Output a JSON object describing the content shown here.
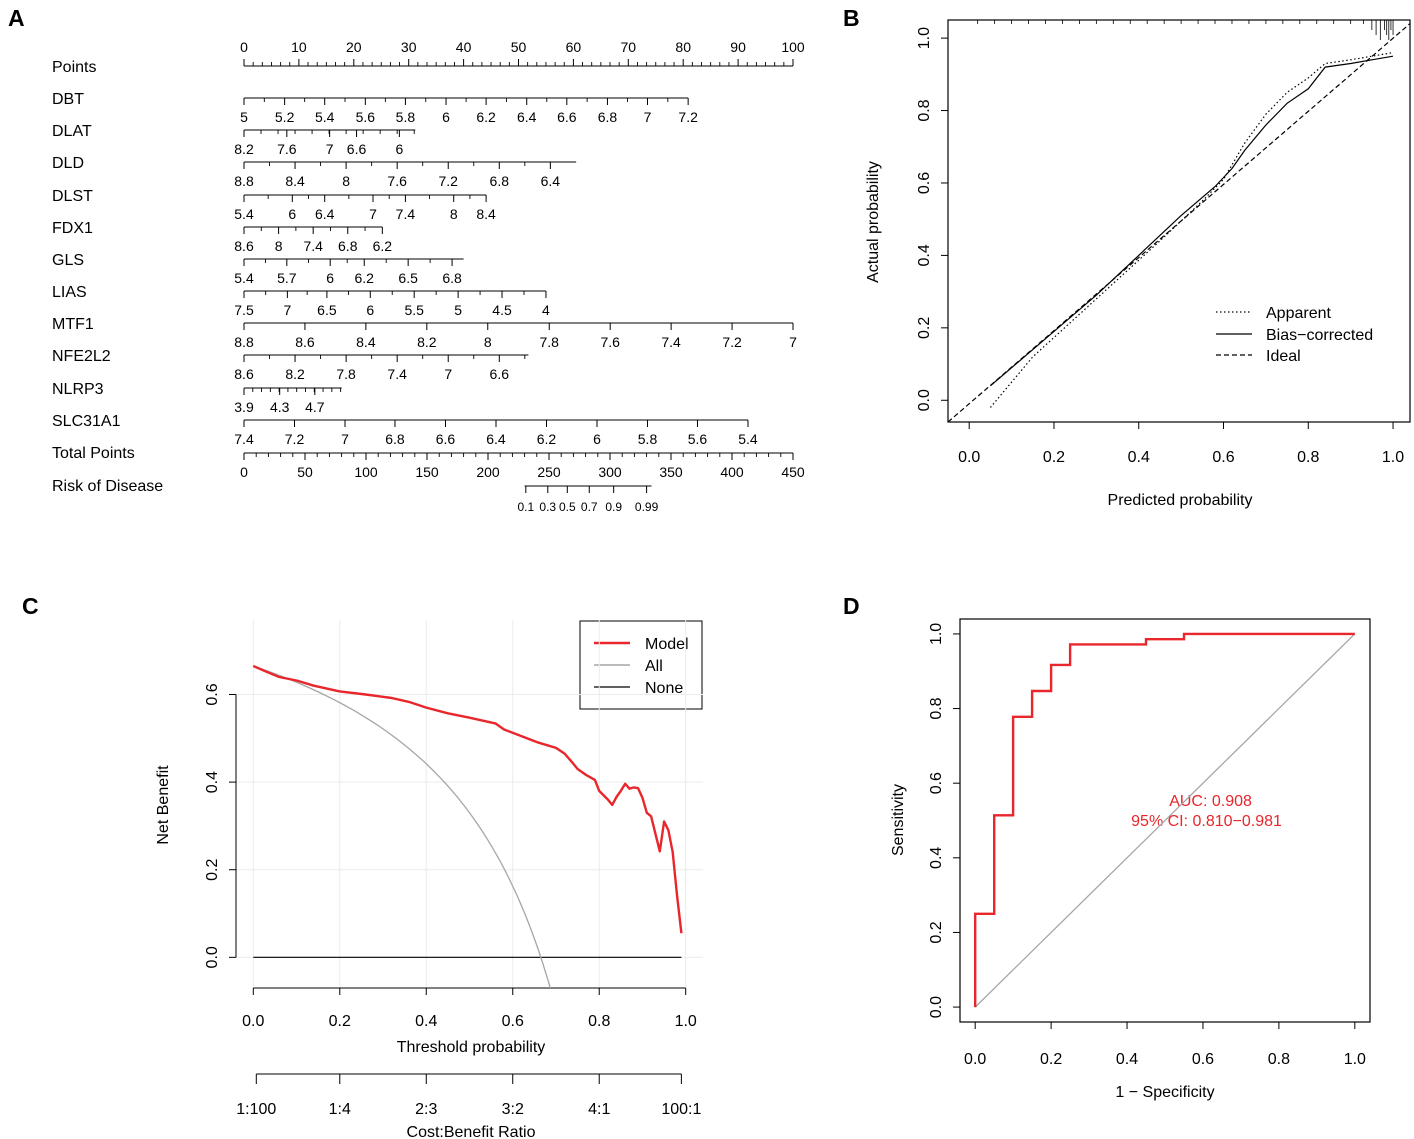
{
  "panels": {
    "A": "A",
    "B": "B",
    "C": "C",
    "D": "D"
  },
  "colors": {
    "ink": "#000000",
    "model": "#e8262b",
    "all": "#a6a6a6",
    "grid": "#ebebeb"
  },
  "chart_data": [
    {
      "type": "nomogram",
      "panel": "A",
      "rows": [
        {
          "label": "Points",
          "ticks": [
            0,
            10,
            20,
            30,
            40,
            50,
            60,
            70,
            80,
            90,
            100
          ],
          "tick_labels": [
            "0",
            "10",
            "20",
            "30",
            "40",
            "50",
            "60",
            "70",
            "80",
            "90",
            "100"
          ],
          "points": [
            0,
            10,
            20,
            30,
            40,
            50,
            60,
            70,
            80,
            90,
            100
          ],
          "minor": 5
        },
        {
          "label": "DBT",
          "tick_labels": [
            "5",
            "5.2",
            "5.4",
            "5.6",
            "5.8",
            "6",
            "6.2",
            "6.4",
            "6.6",
            "6.8",
            "7",
            "7.2"
          ],
          "points": [
            0,
            7.4,
            14.7,
            22.1,
            29.4,
            36.8,
            44.1,
            51.5,
            58.8,
            66.2,
            73.5,
            80.9
          ],
          "minor": 1
        },
        {
          "label": "DLAT",
          "tick_labels": [
            "8.2",
            "7.6",
            "7",
            "6.6",
            "6"
          ],
          "points": [
            0,
            7.8,
            15.6,
            20.5,
            28.3
          ],
          "axis_end": 31.2,
          "minor_step": 3.1
        },
        {
          "label": "DLD",
          "tick_labels": [
            "8.8",
            "8.4",
            "8",
            "7.6",
            "7.2",
            "6.8",
            "6.4"
          ],
          "points": [
            0,
            9.3,
            18.6,
            27.9,
            37.2,
            46.5,
            55.8
          ],
          "axis_end": 60.5,
          "minor": 1
        },
        {
          "label": "DLST",
          "tick_labels": [
            "5.4",
            "6",
            "6.4",
            "7",
            "7.4",
            "8",
            "8.4"
          ],
          "points": [
            0,
            8.8,
            14.7,
            23.5,
            29.4,
            38.2,
            44.1
          ],
          "axis_end": 44.1,
          "minor": 1
        },
        {
          "label": "FDX1",
          "tick_labels": [
            "8.6",
            "8",
            "7.4",
            "6.8",
            "6.2"
          ],
          "points": [
            0,
            6.3,
            12.6,
            18.9,
            25.2
          ],
          "axis_end": 25.2,
          "minor": 1
        },
        {
          "label": "GLS",
          "tick_labels": [
            "5.4",
            "5.7",
            "6",
            "6.2",
            "6.5",
            "6.8"
          ],
          "points": [
            0,
            7.8,
            15.7,
            21.9,
            29.9,
            37.9
          ],
          "axis_end": 40,
          "minor": 1
        },
        {
          "label": "LIAS",
          "tick_labels": [
            "7.5",
            "7",
            "6.5",
            "6",
            "5.5",
            "5",
            "4.5",
            "4"
          ],
          "points": [
            0,
            7.9,
            15.1,
            23,
            31,
            39,
            47,
            55
          ],
          "axis_end": 55,
          "minor": 1
        },
        {
          "label": "MTF1",
          "tick_labels": [
            "8.8",
            "8.6",
            "8.4",
            "8.2",
            "8",
            "7.8",
            "7.6",
            "7.4",
            "7.2",
            "7"
          ],
          "points": [
            0,
            11.1,
            22.2,
            33.3,
            44.4,
            55.6,
            66.7,
            77.8,
            88.9,
            100
          ],
          "minor": 0
        },
        {
          "label": "NFE2L2",
          "tick_labels": [
            "8.6",
            "8.2",
            "7.8",
            "7.4",
            "7",
            "6.6"
          ],
          "points": [
            0,
            9.3,
            18.6,
            27.9,
            37.2,
            46.5
          ],
          "axis_end": 51.8,
          "minor": 1
        },
        {
          "label": "NLRP3",
          "tick_labels": [
            "3.9",
            "4.3",
            "4.7"
          ],
          "points": [
            0,
            6.5,
            12.9
          ],
          "axis_end": 17.8,
          "minor_step": 1.6
        },
        {
          "label": "SLC31A1",
          "tick_labels": [
            "7.4",
            "7.2",
            "7",
            "6.8",
            "6.6",
            "6.4",
            "6.2",
            "6",
            "5.8",
            "5.6",
            "5.4"
          ],
          "points": [
            0,
            9.2,
            18.4,
            27.5,
            36.7,
            45.9,
            55.1,
            64.3,
            73.5,
            82.6,
            91.8
          ],
          "minor": 0
        },
        {
          "label": "Total Points",
          "tick_labels": [
            "0",
            "50",
            "100",
            "150",
            "200",
            "250",
            "300",
            "350",
            "400",
            "450"
          ],
          "total": [
            0,
            50,
            100,
            150,
            200,
            250,
            300,
            350,
            400,
            450
          ],
          "minor": 4
        },
        {
          "label": "Risk of Disease",
          "tick_labels": [
            "0.1",
            "0.3",
            "0.5",
            "0.7",
            "0.9",
            "0.99"
          ],
          "total_at": [
            231,
            249,
            265,
            283,
            303,
            330
          ],
          "axis_range": [
            230,
            334
          ]
        }
      ],
      "total_points_range": [
        0,
        450
      ]
    },
    {
      "type": "line",
      "panel": "B",
      "xlabel": "Predicted probability",
      "ylabel": "Actual probability",
      "xlim": [
        -0.05,
        1.04
      ],
      "ylim": [
        -0.06,
        1.05
      ],
      "xticks": [
        "0.0",
        "0.2",
        "0.4",
        "0.6",
        "0.8",
        "1.0"
      ],
      "yticks": [
        "0.0",
        "0.2",
        "0.4",
        "0.6",
        "0.8",
        "1.0"
      ],
      "legend": {
        "position": "bottom-right",
        "entries": [
          "Apparent",
          "Bias−corrected",
          "Ideal"
        ]
      },
      "series": [
        {
          "name": "Apparent",
          "style": "dotted",
          "points": [
            [
              0.05,
              -0.02
            ],
            [
              0.15,
              0.12
            ],
            [
              0.3,
              0.28
            ],
            [
              0.45,
              0.44
            ],
            [
              0.55,
              0.55
            ],
            [
              0.6,
              0.61
            ],
            [
              0.65,
              0.71
            ],
            [
              0.7,
              0.79
            ],
            [
              0.75,
              0.85
            ],
            [
              0.8,
              0.89
            ],
            [
              0.84,
              0.93
            ],
            [
              0.9,
              0.94
            ],
            [
              0.95,
              0.95
            ],
            [
              1.0,
              0.96
            ]
          ]
        },
        {
          "name": "Bias−corrected",
          "style": "solid",
          "points": [
            [
              0.05,
              0.04
            ],
            [
              0.15,
              0.14
            ],
            [
              0.3,
              0.29
            ],
            [
              0.4,
              0.4
            ],
            [
              0.5,
              0.51
            ],
            [
              0.58,
              0.59
            ],
            [
              0.62,
              0.64
            ],
            [
              0.65,
              0.69
            ],
            [
              0.7,
              0.76
            ],
            [
              0.75,
              0.82
            ],
            [
              0.8,
              0.86
            ],
            [
              0.84,
              0.92
            ],
            [
              0.9,
              0.93
            ],
            [
              0.95,
              0.94
            ],
            [
              1.0,
              0.95
            ]
          ]
        },
        {
          "name": "Ideal",
          "style": "dashed",
          "points": [
            [
              -0.05,
              -0.06
            ],
            [
              1.04,
              1.04
            ]
          ]
        }
      ],
      "rug": [
        0.02,
        0.06,
        0.1,
        0.14,
        0.18,
        0.22,
        0.26,
        0.3,
        0.34,
        0.38,
        0.42,
        0.46,
        0.5,
        0.54,
        0.58,
        0.62,
        0.66,
        0.7,
        0.74,
        0.78,
        0.82,
        0.86,
        0.9,
        0.93,
        0.95,
        0.96,
        0.97,
        0.98,
        0.985,
        0.99,
        0.995,
        1.0
      ]
    },
    {
      "type": "line",
      "panel": "C",
      "xlabel": "Threshold probability",
      "ylabel": "Net Benefit",
      "xlim": [
        -0.04,
        1.04
      ],
      "ylim": [
        -0.07,
        0.77
      ],
      "xticks": [
        "0.0",
        "0.2",
        "0.4",
        "0.6",
        "0.8",
        "1.0"
      ],
      "yticks": [
        "0.0",
        "0.2",
        "0.4",
        "0.6"
      ],
      "x2label": "Cost:Benefit Ratio",
      "x2ticks": [
        "1:100",
        "1:4",
        "2:3",
        "3:2",
        "4:1",
        "100:1"
      ],
      "legend": {
        "position": "top-right",
        "entries": [
          "Model",
          "All",
          "None"
        ]
      },
      "series": [
        {
          "name": "Model",
          "points": [
            [
              0,
              0.665
            ],
            [
              0.03,
              0.652
            ],
            [
              0.06,
              0.64
            ],
            [
              0.1,
              0.632
            ],
            [
              0.14,
              0.62
            ],
            [
              0.2,
              0.607
            ],
            [
              0.26,
              0.6
            ],
            [
              0.32,
              0.592
            ],
            [
              0.36,
              0.583
            ],
            [
              0.4,
              0.57
            ],
            [
              0.45,
              0.557
            ],
            [
              0.5,
              0.547
            ],
            [
              0.56,
              0.534
            ],
            [
              0.58,
              0.52
            ],
            [
              0.62,
              0.505
            ],
            [
              0.66,
              0.49
            ],
            [
              0.7,
              0.478
            ],
            [
              0.72,
              0.465
            ],
            [
              0.74,
              0.442
            ],
            [
              0.75,
              0.43
            ],
            [
              0.77,
              0.416
            ],
            [
              0.79,
              0.405
            ],
            [
              0.8,
              0.38
            ],
            [
              0.82,
              0.36
            ],
            [
              0.83,
              0.348
            ],
            [
              0.84,
              0.366
            ],
            [
              0.85,
              0.38
            ],
            [
              0.86,
              0.396
            ],
            [
              0.87,
              0.385
            ],
            [
              0.88,
              0.388
            ],
            [
              0.89,
              0.386
            ],
            [
              0.9,
              0.364
            ],
            [
              0.91,
              0.33
            ],
            [
              0.92,
              0.322
            ],
            [
              0.94,
              0.242
            ],
            [
              0.95,
              0.31
            ],
            [
              0.96,
              0.29
            ],
            [
              0.97,
              0.24
            ],
            [
              0.98,
              0.14
            ],
            [
              0.99,
              0.055
            ]
          ]
        },
        {
          "name": "All",
          "prevalence": 0.665,
          "x_end": 0.69
        },
        {
          "name": "None",
          "points": [
            [
              0,
              0
            ],
            [
              0.99,
              0
            ]
          ]
        }
      ]
    },
    {
      "type": "line",
      "panel": "D",
      "xlabel": "1 − Specificity",
      "ylabel": "Sensitivity",
      "xlim": [
        -0.04,
        1.04
      ],
      "ylim": [
        -0.04,
        1.04
      ],
      "xticks": [
        "0.0",
        "0.2",
        "0.4",
        "0.6",
        "0.8",
        "1.0"
      ],
      "yticks": [
        "0.0",
        "0.2",
        "0.4",
        "0.6",
        "0.8",
        "1.0"
      ],
      "annotations": [
        "AUC: 0.908",
        "95% CI: 0.810−0.981"
      ],
      "annotation_at": [
        0.62,
        0.48
      ],
      "series": [
        {
          "name": "ROC",
          "points": [
            [
              0,
              0
            ],
            [
              0,
              0.25
            ],
            [
              0.05,
              0.25
            ],
            [
              0.05,
              0.514
            ],
            [
              0.1,
              0.514
            ],
            [
              0.1,
              0.778
            ],
            [
              0.15,
              0.778
            ],
            [
              0.15,
              0.847
            ],
            [
              0.2,
              0.847
            ],
            [
              0.2,
              0.917
            ],
            [
              0.25,
              0.917
            ],
            [
              0.25,
              0.972
            ],
            [
              0.45,
              0.972
            ],
            [
              0.45,
              0.986
            ],
            [
              0.55,
              0.986
            ],
            [
              0.55,
              1.0
            ],
            [
              1.0,
              1.0
            ]
          ]
        },
        {
          "name": "Diagonal",
          "points": [
            [
              0,
              0
            ],
            [
              1,
              1
            ]
          ]
        }
      ]
    }
  ]
}
